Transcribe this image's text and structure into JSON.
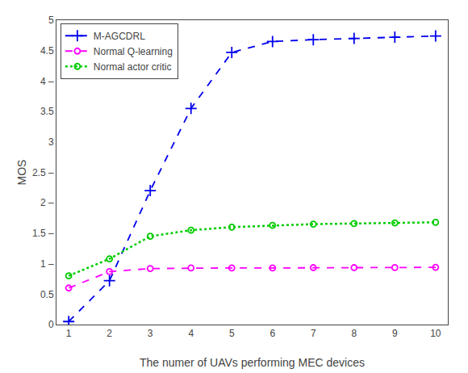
{
  "chart_data": {
    "type": "line",
    "x": [
      1,
      2,
      3,
      4,
      5,
      6,
      7,
      8,
      9,
      10
    ],
    "series": [
      {
        "name": "M-AGCDRL",
        "color": "#0000ee",
        "marker": "plus",
        "line_style": "dashed",
        "values": [
          0.05,
          0.72,
          2.2,
          3.55,
          4.47,
          4.65,
          4.68,
          4.7,
          4.72,
          4.74
        ]
      },
      {
        "name": "Normal Q-learning",
        "color": "#ff00ff",
        "marker": "circle",
        "line_style": "dashed",
        "values": [
          0.6,
          0.87,
          0.92,
          0.93,
          0.93,
          0.93,
          0.935,
          0.935,
          0.937,
          0.94
        ]
      },
      {
        "name": "Normal actor critic",
        "color": "#00cc00",
        "marker": "circle",
        "line_style": "dotted",
        "values": [
          0.8,
          1.08,
          1.45,
          1.55,
          1.6,
          1.63,
          1.65,
          1.66,
          1.67,
          1.68
        ]
      }
    ],
    "x_label": "The numer of UAVs performing MEC devices",
    "y_label": "MOS",
    "xlim": [
      0.7,
      10.3
    ],
    "ylim": [
      0,
      5
    ],
    "xticks": [
      1,
      2,
      3,
      4,
      5,
      6,
      7,
      8,
      9,
      10
    ],
    "yticks": [
      0,
      0.5,
      {
        "value": 1,
        "label": "1 –"
      },
      {
        "value": 1.5,
        "label": "1.5 –"
      },
      {
        "value": 2,
        "label": "2 –"
      },
      {
        "value": 2.5,
        "label": "2.5 –"
      },
      3,
      3.5,
      {
        "value": 4,
        "label": "4 –"
      },
      4.5,
      5
    ],
    "legend": "upper left",
    "grid": false
  }
}
